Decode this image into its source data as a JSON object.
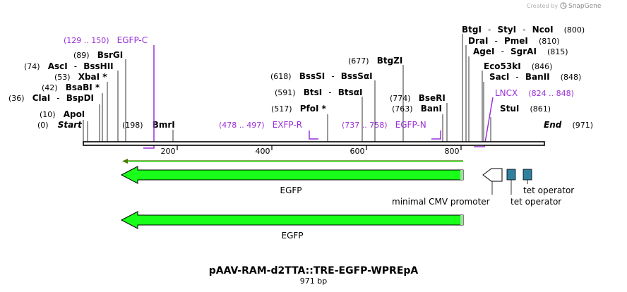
{
  "credit": {
    "prefix": "Created by",
    "brand": "SnapGene"
  },
  "map": {
    "title": "pAAV-RAM-d2TTA::TRE-EGFP-WPREpA",
    "length_label": "971 bp",
    "ticks": [
      "200",
      "400",
      "600",
      "800"
    ]
  },
  "sites": {
    "start": {
      "pos": "(0)",
      "name": "Start"
    },
    "end": {
      "pos": "(971)",
      "name": "End"
    },
    "apoi": {
      "pos": "(10)",
      "name": "ApoI"
    },
    "clai": {
      "pos": "(36)",
      "name1": "ClaI",
      "name2": "BspDI"
    },
    "bsabi": {
      "pos": "(42)",
      "name": "BsaBI *"
    },
    "xbai": {
      "pos": "(53)",
      "name": "XbaI *"
    },
    "asci": {
      "pos": "(74)",
      "name1": "AscI",
      "name2": "BssHII"
    },
    "bsrgi": {
      "pos": "(89)",
      "name": "BsrGI"
    },
    "bmri": {
      "pos": "(198)",
      "name": "BmrI"
    },
    "pfoi": {
      "pos": "(517)",
      "name": "PfoI *"
    },
    "btsi": {
      "pos": "(591)",
      "name1": "BtsI",
      "name2": "BtsαI"
    },
    "bsssi": {
      "pos": "(618)",
      "name1": "BssSI",
      "name2": "BssSαI"
    },
    "btgzi": {
      "pos": "(677)",
      "name": "BtgZI"
    },
    "bani": {
      "pos": "(763)",
      "name": "BanI"
    },
    "bseri": {
      "pos": "(774)",
      "name": "BseRI"
    },
    "btgi": {
      "pos": "(800)",
      "name1": "BtgI",
      "name2": "StyI",
      "name3": "NcoI"
    },
    "drai": {
      "pos": "(810)",
      "name1": "DraI",
      "name2": "PmeI"
    },
    "agei": {
      "pos": "(815)",
      "name1": "AgeI",
      "name2": "SgrAI"
    },
    "eco53ki": {
      "pos": "(846)",
      "name": "Eco53kI"
    },
    "saci": {
      "pos": "(848)",
      "name1": "SacI",
      "name2": "BanII"
    },
    "stui": {
      "pos": "(861)",
      "name": "StuI"
    }
  },
  "primers": {
    "egfp_c": {
      "range": "(129 .. 150)",
      "name": "EGFP-C"
    },
    "exfp_r": {
      "range": "(478 .. 497)",
      "name": "EXFP-R"
    },
    "egfp_n": {
      "range": "(737 .. 758)",
      "name": "EGFP-N"
    },
    "lncx": {
      "range": "(824 .. 848)",
      "name": "LNCX"
    }
  },
  "features": {
    "egfp_1": "EGFP",
    "egfp_2": "EGFP",
    "min_cmv": "minimal CMV promoter",
    "tet_op_1": "tet operator",
    "tet_op_2": "tet operator"
  },
  "colors": {
    "feature_green": "#19ff19",
    "primer_purple": "#9b30d9",
    "tet_op_fill": "#2f7f9f",
    "orf_line": "#4a7a00"
  }
}
